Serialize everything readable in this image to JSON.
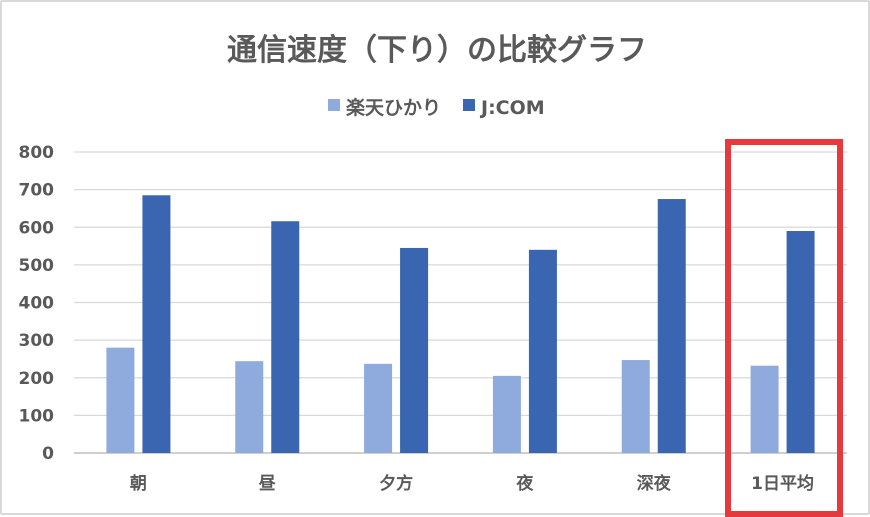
{
  "chart_data": {
    "type": "bar",
    "title": "通信速度（下り）の比較グラフ",
    "categories": [
      "朝",
      "昼",
      "夕方",
      "夜",
      "深夜",
      "1日平均"
    ],
    "series": [
      {
        "name": "楽天ひかり",
        "values": [
          280,
          244,
          237,
          205,
          247,
          232
        ],
        "color": "#8faadc"
      },
      {
        "name": "J:COM",
        "values": [
          685,
          616,
          545,
          540,
          675,
          590
        ],
        "color": "#3a65b0"
      }
    ],
    "ylim": [
      0,
      800
    ],
    "yticks": [
      0,
      100,
      200,
      300,
      400,
      500,
      600,
      700,
      800
    ],
    "grid": true,
    "legend": "top",
    "highlight": {
      "category": "1日平均",
      "color": "#e8383d"
    }
  }
}
